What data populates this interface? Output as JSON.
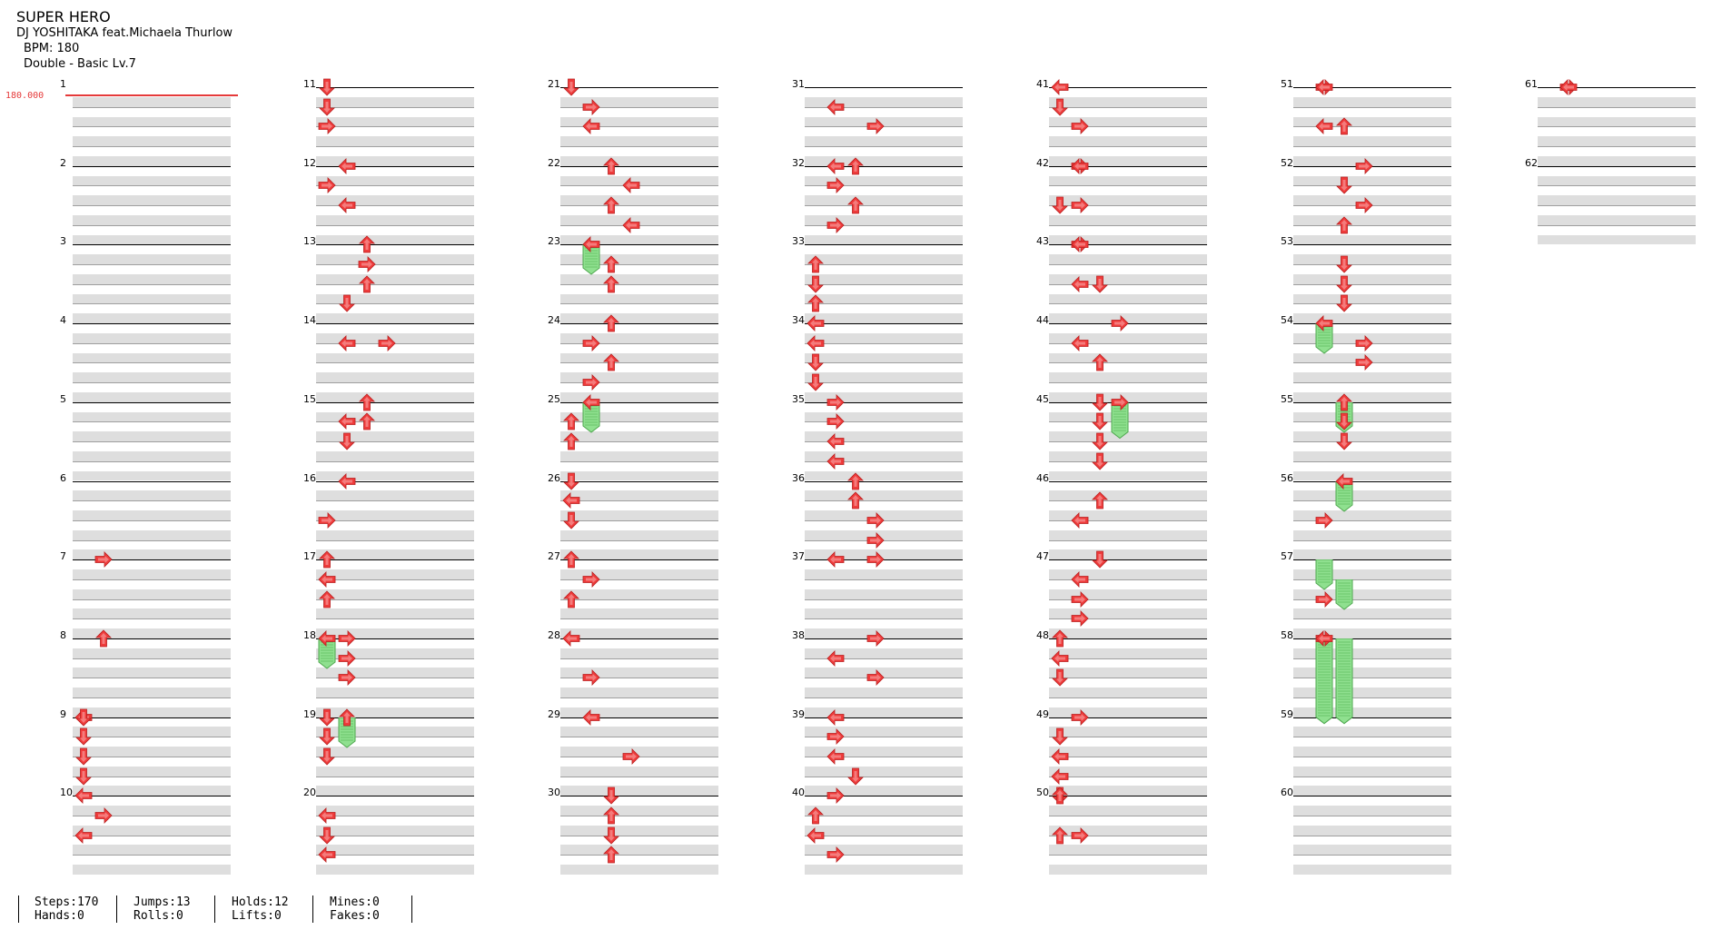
{
  "song": {
    "title": "SUPER HERO",
    "artist": "DJ YOSHITAKA feat.Michaela Thurlow",
    "bpm": "BPM: 180",
    "chart": "Double - Basic  Lv.7"
  },
  "bpm_marker": "180.000",
  "measures": [
    "1",
    "2",
    "3",
    "4",
    "5",
    "6",
    "7",
    "8",
    "9",
    "10",
    "11",
    "12",
    "13",
    "14",
    "15",
    "16",
    "17",
    "18",
    "19",
    "20",
    "21",
    "22",
    "23",
    "24",
    "25",
    "26",
    "27",
    "28",
    "29",
    "30",
    "31",
    "32",
    "33",
    "34",
    "35",
    "36",
    "37",
    "38",
    "39",
    "40",
    "41",
    "42",
    "43",
    "44",
    "45",
    "46",
    "47",
    "48",
    "49",
    "50",
    "51",
    "52",
    "53",
    "54",
    "55",
    "56",
    "57",
    "58",
    "59",
    "60",
    "61",
    "62"
  ],
  "stats": [
    [
      "Steps:170",
      "Hands:0"
    ],
    [
      "Jumps:13",
      "Rolls:0"
    ],
    [
      "Holds:12",
      "Lifts:0"
    ],
    [
      "Mines:0",
      "Fakes:0"
    ]
  ],
  "colors": {
    "arrow": "#ef3b3b",
    "hold": "#8fe08f",
    "band": "#dedede"
  },
  "notes": [
    [
      9,
      0,
      0,
      "l"
    ],
    [
      10,
      0,
      0,
      "l"
    ],
    [
      10,
      1,
      1,
      "r"
    ],
    [
      10,
      2,
      0,
      "l"
    ],
    [
      7,
      0,
      1,
      "r"
    ],
    [
      8,
      0,
      1,
      "u"
    ],
    [
      9,
      0,
      0,
      "d"
    ],
    [
      9,
      1,
      0,
      "d"
    ],
    [
      9,
      2,
      0,
      "d"
    ],
    [
      9,
      3,
      0,
      "d"
    ],
    [
      11,
      0,
      0,
      "d"
    ],
    [
      11,
      1,
      0,
      "d"
    ],
    [
      11,
      2,
      0,
      "r"
    ],
    [
      12,
      0,
      1,
      "l"
    ],
    [
      12,
      1,
      0,
      "r"
    ],
    [
      12,
      2,
      1,
      "l"
    ],
    [
      13,
      0,
      2,
      "u"
    ],
    [
      13,
      1,
      2,
      "r"
    ],
    [
      13,
      2,
      2,
      "u"
    ],
    [
      13,
      3,
      1,
      "d"
    ],
    [
      14,
      1,
      1,
      "l"
    ],
    [
      14,
      1,
      3,
      "r"
    ],
    [
      15,
      1,
      1,
      "l"
    ],
    [
      15,
      0,
      2,
      "u"
    ],
    [
      15,
      1,
      2,
      "u"
    ],
    [
      15,
      2,
      1,
      "d"
    ],
    [
      16,
      0,
      1,
      "l"
    ],
    [
      16,
      2,
      0,
      "r"
    ],
    [
      17,
      0,
      0,
      "u"
    ],
    [
      17,
      1,
      0,
      "l"
    ],
    [
      17,
      2,
      0,
      "u"
    ],
    [
      18,
      0,
      0,
      "l"
    ],
    [
      18,
      0,
      1,
      "r"
    ],
    [
      18,
      1,
      1,
      "r"
    ],
    [
      18,
      2,
      1,
      "r"
    ],
    [
      19,
      0,
      0,
      "d"
    ],
    [
      19,
      0,
      1,
      "u"
    ],
    [
      19,
      1,
      0,
      "d"
    ],
    [
      19,
      2,
      0,
      "d"
    ],
    [
      20,
      1,
      0,
      "l"
    ],
    [
      20,
      2,
      0,
      "d"
    ],
    [
      20,
      3,
      0,
      "l"
    ],
    [
      21,
      0,
      0,
      "d"
    ],
    [
      21,
      1,
      1,
      "r"
    ],
    [
      21,
      2,
      1,
      "l"
    ],
    [
      22,
      0,
      2,
      "u"
    ],
    [
      22,
      1,
      3,
      "l"
    ],
    [
      22,
      2,
      2,
      "u"
    ],
    [
      22,
      3,
      3,
      "l"
    ],
    [
      23,
      0,
      1,
      "l"
    ],
    [
      23,
      1,
      2,
      "u"
    ],
    [
      23,
      2,
      2,
      "u"
    ],
    [
      24,
      0,
      2,
      "u"
    ],
    [
      24,
      1,
      1,
      "r"
    ],
    [
      24,
      2,
      2,
      "u"
    ],
    [
      24,
      3,
      1,
      "r"
    ],
    [
      25,
      0,
      1,
      "l"
    ],
    [
      25,
      1,
      0,
      "u"
    ],
    [
      25,
      2,
      0,
      "u"
    ],
    [
      26,
      0,
      0,
      "d"
    ],
    [
      26,
      1,
      0,
      "l"
    ],
    [
      26,
      2,
      0,
      "d"
    ],
    [
      27,
      0,
      0,
      "u"
    ],
    [
      27,
      1,
      1,
      "r"
    ],
    [
      27,
      2,
      0,
      "u"
    ],
    [
      28,
      0,
      0,
      "l"
    ],
    [
      28,
      2,
      1,
      "r"
    ],
    [
      29,
      0,
      1,
      "l"
    ],
    [
      29,
      2,
      3,
      "r"
    ],
    [
      30,
      0,
      2,
      "d"
    ],
    [
      30,
      1,
      2,
      "u"
    ],
    [
      30,
      2,
      2,
      "d"
    ],
    [
      30,
      3,
      2,
      "u"
    ],
    [
      31,
      1,
      1,
      "l"
    ],
    [
      31,
      2,
      3,
      "r"
    ],
    [
      32,
      0,
      1,
      "l"
    ],
    [
      32,
      0,
      2,
      "u"
    ],
    [
      32,
      1,
      1,
      "r"
    ],
    [
      32,
      2,
      2,
      "u"
    ],
    [
      32,
      3,
      1,
      "r"
    ],
    [
      33,
      1,
      0,
      "u"
    ],
    [
      33,
      2,
      0,
      "d"
    ],
    [
      33,
      3,
      0,
      "u"
    ],
    [
      34,
      0,
      0,
      "l"
    ],
    [
      34,
      1,
      0,
      "l"
    ],
    [
      34,
      2,
      0,
      "d"
    ],
    [
      34,
      3,
      0,
      "d"
    ],
    [
      35,
      0,
      1,
      "r"
    ],
    [
      35,
      1,
      1,
      "r"
    ],
    [
      35,
      2,
      1,
      "l"
    ],
    [
      35,
      3,
      1,
      "l"
    ],
    [
      36,
      0,
      2,
      "u"
    ],
    [
      36,
      1,
      2,
      "u"
    ],
    [
      36,
      2,
      3,
      "r"
    ],
    [
      36,
      3,
      3,
      "r"
    ],
    [
      37,
      0,
      1,
      "l"
    ],
    [
      37,
      0,
      3,
      "r"
    ],
    [
      38,
      0,
      3,
      "r"
    ],
    [
      38,
      1,
      1,
      "l"
    ],
    [
      38,
      2,
      3,
      "r"
    ],
    [
      39,
      3,
      2,
      "d"
    ],
    [
      39,
      0,
      1,
      "l"
    ],
    [
      39,
      1,
      1,
      "r"
    ],
    [
      39,
      2,
      1,
      "l"
    ],
    [
      40,
      0,
      1,
      "r"
    ],
    [
      40,
      1,
      0,
      "u"
    ],
    [
      40,
      2,
      0,
      "l"
    ],
    [
      40,
      3,
      1,
      "r"
    ],
    [
      41,
      0,
      0,
      "l"
    ],
    [
      41,
      1,
      0,
      "d"
    ],
    [
      41,
      2,
      1,
      "r"
    ],
    [
      42,
      0,
      1,
      "r"
    ],
    [
      42,
      0,
      1,
      "l"
    ],
    [
      42,
      2,
      0,
      "d"
    ],
    [
      42,
      2,
      1,
      "r"
    ],
    [
      43,
      0,
      1,
      "r"
    ],
    [
      43,
      0,
      1,
      "l"
    ],
    [
      43,
      2,
      1,
      "l"
    ],
    [
      43,
      2,
      2,
      "d"
    ],
    [
      44,
      0,
      3,
      "r"
    ],
    [
      44,
      1,
      1,
      "l"
    ],
    [
      44,
      2,
      2,
      "u"
    ],
    [
      45,
      0,
      2,
      "d"
    ],
    [
      45,
      0,
      3,
      "r"
    ],
    [
      45,
      1,
      2,
      "d"
    ],
    [
      45,
      2,
      2,
      "d"
    ],
    [
      45,
      3,
      2,
      "d"
    ],
    [
      46,
      1,
      2,
      "u"
    ],
    [
      46,
      2,
      1,
      "l"
    ],
    [
      47,
      0,
      2,
      "d"
    ],
    [
      47,
      1,
      1,
      "l"
    ],
    [
      47,
      2,
      1,
      "r"
    ],
    [
      47,
      3,
      1,
      "r"
    ],
    [
      48,
      0,
      0,
      "u"
    ],
    [
      48,
      1,
      0,
      "l"
    ],
    [
      48,
      2,
      0,
      "d"
    ],
    [
      49,
      0,
      1,
      "r"
    ],
    [
      49,
      1,
      0,
      "d"
    ],
    [
      49,
      2,
      0,
      "l"
    ],
    [
      49,
      3,
      0,
      "l"
    ],
    [
      50,
      0,
      0,
      "d"
    ],
    [
      50,
      0,
      0,
      "u"
    ],
    [
      50,
      2,
      0,
      "u"
    ],
    [
      50,
      2,
      1,
      "r"
    ],
    [
      51,
      0,
      1,
      "r"
    ],
    [
      51,
      0,
      1,
      "l"
    ],
    [
      51,
      2,
      1,
      "l"
    ],
    [
      51,
      2,
      2,
      "u"
    ],
    [
      52,
      0,
      3,
      "r"
    ],
    [
      52,
      1,
      2,
      "d"
    ],
    [
      52,
      2,
      3,
      "r"
    ],
    [
      52,
      3,
      2,
      "u"
    ],
    [
      53,
      1,
      2,
      "d"
    ],
    [
      53,
      2,
      2,
      "d"
    ],
    [
      53,
      3,
      2,
      "d"
    ],
    [
      54,
      0,
      1,
      "l"
    ],
    [
      54,
      1,
      3,
      "r"
    ],
    [
      54,
      2,
      3,
      "r"
    ],
    [
      55,
      0,
      2,
      "u"
    ],
    [
      55,
      1,
      2,
      "d"
    ],
    [
      55,
      2,
      2,
      "d"
    ],
    [
      56,
      0,
      2,
      "l"
    ],
    [
      56,
      2,
      1,
      "r"
    ],
    [
      57,
      2,
      1,
      "r"
    ],
    [
      58,
      0,
      1,
      "r"
    ],
    [
      58,
      0,
      1,
      "l"
    ],
    [
      61,
      0,
      1,
      "r"
    ],
    [
      61,
      0,
      1,
      "l"
    ]
  ],
  "holds": [
    [
      18,
      0,
      0,
      1.2
    ],
    [
      19,
      0,
      1,
      1.2
    ],
    [
      23,
      0,
      1,
      1.2
    ],
    [
      25,
      0,
      1,
      1.2
    ],
    [
      45,
      0,
      3,
      1.5
    ],
    [
      54,
      0,
      1,
      1.2
    ],
    [
      55,
      0,
      2,
      1.2
    ],
    [
      56,
      0,
      2,
      1.2
    ],
    [
      57,
      0,
      1,
      1.2
    ],
    [
      57,
      1,
      2,
      1.2
    ],
    [
      58,
      0,
      1,
      4.0
    ],
    [
      58,
      0,
      2,
      4.0
    ]
  ]
}
